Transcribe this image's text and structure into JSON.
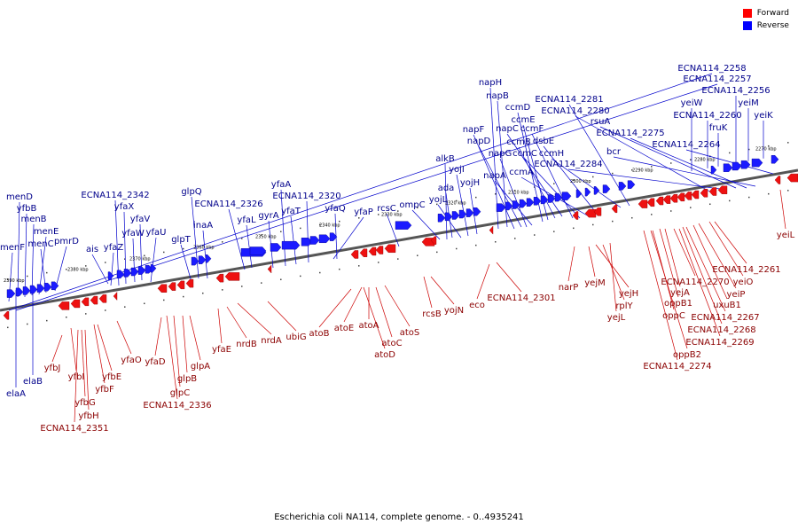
{
  "legend": {
    "forward_label": "Forward",
    "reverse_label": "Reverse",
    "forward_color": "#ff0000",
    "reverse_color": "#0000ff"
  },
  "caption": "Escherichia coli NA114, complete genome. - 0..4935241",
  "colors": {
    "reverse_label": "#00008b",
    "forward_label": "#8b0000",
    "backbone": "#555555"
  },
  "ticks": [
    "2390 kbp",
    "2380 kbp",
    "2370 kbp",
    "2360 kbp",
    "2350 kbp",
    "2340 kbp",
    "2330 kbp",
    "2320 kbp",
    "2310 kbp",
    "2300 kbp",
    "2290 kbp",
    "2280 kbp",
    "2270 kbp"
  ],
  "reverse_genes": [
    "menF",
    "menD",
    "yfbB",
    "menB",
    "menE",
    "menC",
    "pmrD",
    "ais",
    "ECNA114_2342",
    "yfaX",
    "yfaZ",
    "yfaW",
    "yfaV",
    "yfaU",
    "glpT",
    "glpQ",
    "inaA",
    "ECNA114_2326",
    "yfaL",
    "gyrA",
    "yfaA",
    "ECNA114_2320",
    "yfaT",
    "yfaQ",
    "yfaP",
    "rcsC",
    "ompC",
    "alkB",
    "ada",
    "yojL",
    "yojI",
    "yojH",
    "napH",
    "napB",
    "napF",
    "napD",
    "napG",
    "napA",
    "ccmD",
    "ccmE",
    "ccmB",
    "napC",
    "ccmF",
    "ccmC",
    "ccmA",
    "dsbE",
    "ccmH",
    "ECNA114_2281",
    "ECNA114_2280",
    "ECNA114_2284",
    "rsuA",
    "ECNA114_2275",
    "bcr",
    "ECNA114_2264",
    "ECNA114_2258",
    "ECNA114_2257",
    "ECNA114_2256",
    "yeiW",
    "ECNA114_2260",
    "yeiM",
    "fruK",
    "yeiK",
    "elaA",
    "elaB"
  ],
  "forward_genes": [
    "yfbJ",
    "yfbI",
    "yfbG",
    "yfbH",
    "ECNA114_2351",
    "yfbE",
    "yfbF",
    "yfaO",
    "yfaD",
    "glpB",
    "glpC",
    "ECNA114_2336",
    "glpA",
    "yfaE",
    "nrdB",
    "nrdA",
    "ubiG",
    "atoB",
    "atoE",
    "atoA",
    "atoC",
    "atoD",
    "atoS",
    "rcsB",
    "yojN",
    "eco",
    "ECNA114_2301",
    "narP",
    "yejM",
    "yejH",
    "rplY",
    "yejL",
    "ECNA114_2261",
    "yeiO",
    "ECNA114_2270",
    "yejA",
    "yeiP",
    "oppB1",
    "uxuB1",
    "oppC",
    "ECNA114_2267",
    "ECNA114_2268",
    "ECNA114_2269",
    "oppB2",
    "ECNA114_2274",
    "yeiL"
  ]
}
